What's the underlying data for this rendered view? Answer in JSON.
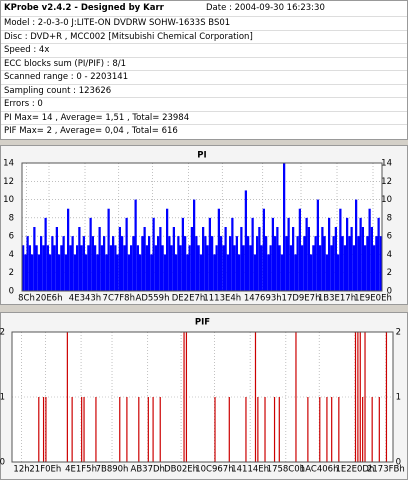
{
  "info": {
    "title": "KProbe v2.4.2 - Designed by Karr",
    "date": "Date : 2004-09-30 16:23:30",
    "lines": [
      "Model : 2-0-3-0 J:LITE-ON DVDRW SOHW-1633S BS01",
      "Disc : DVD+R , MCC002 [Mitsubishi Chemical Corporation]",
      "Speed : 4x",
      "ECC blocks sum (PI/PIF) : 8/1",
      "Scanned range : 0 - 2203141",
      "Sampling count : 123626",
      "Errors : 0",
      "PI Max= 14 , Average= 1,51 , Total= 23984",
      "PIF Max= 2 , Average= 0,04 , Total= 616"
    ]
  },
  "chart_data": [
    {
      "type": "bar",
      "title": "PI",
      "color": "#0000ff",
      "grid": true,
      "values": [
        5,
        4,
        6,
        5,
        4,
        7,
        5,
        4,
        6,
        5,
        8,
        5,
        4,
        6,
        5,
        7,
        4,
        5,
        6,
        4,
        9,
        5,
        6,
        4,
        5,
        7,
        5,
        6,
        4,
        5,
        8,
        6,
        5,
        4,
        7,
        5,
        6,
        4,
        9,
        5,
        6,
        5,
        4,
        7,
        6,
        5,
        8,
        4,
        5,
        6,
        10,
        5,
        4,
        6,
        7,
        5,
        6,
        4,
        8,
        5,
        6,
        7,
        5,
        4,
        9,
        6,
        5,
        7,
        4,
        6,
        5,
        8,
        6,
        4,
        5,
        7,
        10,
        6,
        5,
        4,
        7,
        6,
        5,
        8,
        6,
        4,
        5,
        9,
        6,
        5,
        7,
        4,
        6,
        8,
        5,
        6,
        4,
        7,
        5,
        11,
        6,
        5,
        8,
        4,
        6,
        7,
        5,
        9,
        6,
        4,
        5,
        8,
        6,
        7,
        5,
        4,
        14,
        6,
        8,
        5,
        7,
        4,
        6,
        9,
        5,
        6,
        8,
        7,
        4,
        5,
        6,
        10,
        5,
        7,
        6,
        4,
        8,
        5,
        6,
        7,
        4,
        9,
        6,
        5,
        8,
        6,
        7,
        5,
        10,
        6,
        8,
        7,
        5,
        6,
        9,
        7,
        5,
        6,
        8,
        6
      ],
      "xlim": [
        0,
        160
      ],
      "xticks": [
        {
          "value": 2,
          "label": "8Ch"
        },
        {
          "value": 12,
          "label": "20E6h"
        },
        {
          "value": 28,
          "label": "4E343h"
        },
        {
          "value": 43,
          "label": "7C7F8h"
        },
        {
          "value": 58,
          "label": "AD559h"
        },
        {
          "value": 74,
          "label": "DE2E7h"
        },
        {
          "value": 89,
          "label": "1113E4h"
        },
        {
          "value": 107,
          "label": "147693h"
        },
        {
          "value": 124,
          "label": "17D9E7h"
        },
        {
          "value": 140,
          "label": "1B3E17h"
        },
        {
          "value": 156,
          "label": "1E9E0Eh"
        }
      ],
      "ylim": [
        0,
        14
      ],
      "yticks": [
        0,
        2,
        4,
        6,
        8,
        10,
        12,
        14
      ]
    },
    {
      "type": "bar",
      "title": "PIF",
      "color": "#cc0000",
      "grid": true,
      "x": [
        11,
        13,
        14,
        23,
        25,
        29,
        30,
        35,
        45,
        48,
        53,
        57,
        59,
        62,
        72,
        73,
        85,
        91,
        98,
        102,
        103,
        106,
        110,
        112,
        119,
        124,
        129,
        132,
        134,
        137,
        144,
        145,
        146,
        147,
        148,
        151,
        154,
        157
      ],
      "values": [
        1,
        1,
        1,
        2,
        1,
        1,
        1,
        1,
        1,
        1,
        1,
        1,
        1,
        1,
        2,
        2,
        1,
        1,
        1,
        2,
        1,
        1,
        1,
        1,
        2,
        1,
        1,
        1,
        1,
        1,
        2,
        2,
        2,
        1,
        2,
        1,
        1,
        2
      ],
      "xlim": [
        0,
        160
      ],
      "xticks": [
        {
          "value": 4,
          "label": "12h"
        },
        {
          "value": 14,
          "label": "21F0Eh"
        },
        {
          "value": 29,
          "label": "4E1F5h"
        },
        {
          "value": 42,
          "label": "7B890h"
        },
        {
          "value": 57,
          "label": "AB37Dh"
        },
        {
          "value": 71,
          "label": "DB02Eh"
        },
        {
          "value": 85,
          "label": "10C967h"
        },
        {
          "value": 100,
          "label": "14114Eh"
        },
        {
          "value": 115,
          "label": "1758C0h"
        },
        {
          "value": 129,
          "label": "1AC406h"
        },
        {
          "value": 144,
          "label": "1E2E0Dh"
        },
        {
          "value": 157,
          "label": "2173FBh"
        }
      ],
      "ylim": [
        0,
        2
      ],
      "yticks": [
        0,
        1,
        2
      ]
    }
  ]
}
